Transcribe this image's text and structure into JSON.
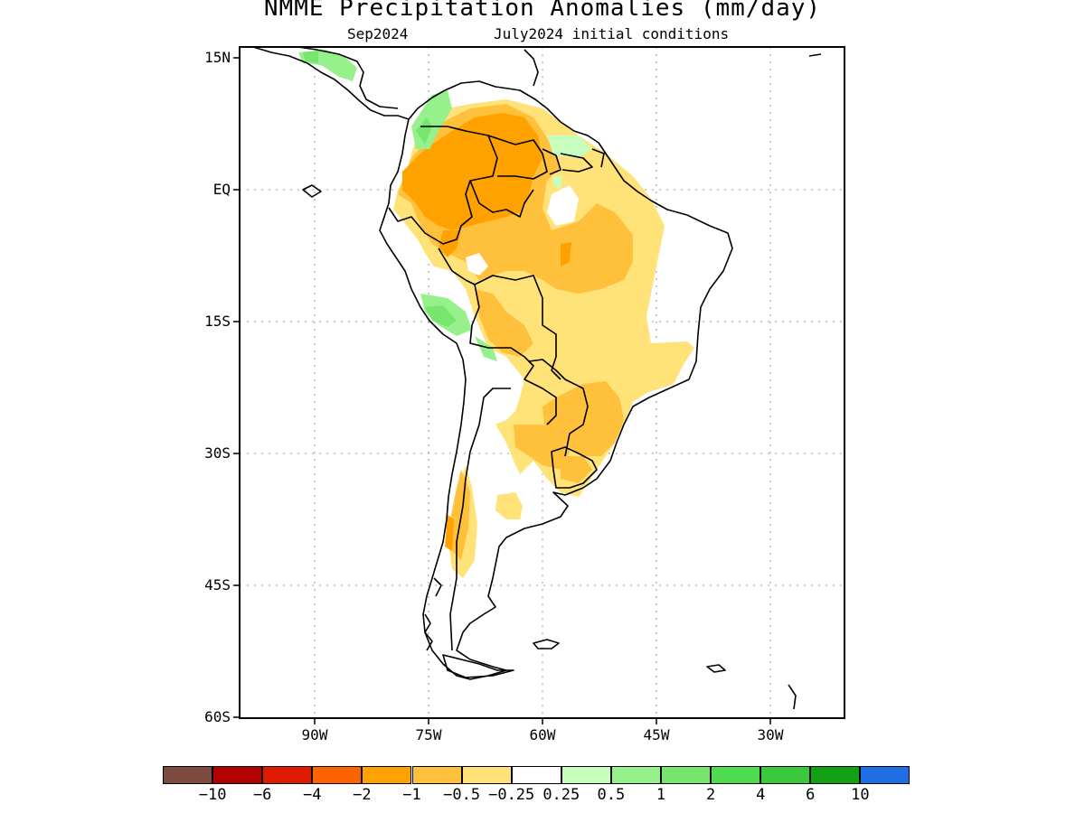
{
  "title": "NMME Precipitation Anomalies (mm/day)",
  "subtitle_left": "Sep2024",
  "subtitle_right": "July2024 initial conditions",
  "map": {
    "lon_range": [
      -100,
      -20
    ],
    "lat_range": [
      -60,
      15
    ],
    "y_ticks": [
      "15N",
      "EQ",
      "15S",
      "30S",
      "45S",
      "60S"
    ],
    "x_ticks": [
      "90W",
      "75W",
      "60W",
      "45W",
      "30W"
    ],
    "grid": "dotted"
  },
  "colorbar": {
    "colors": [
      "#7a4b3e",
      "#b30000",
      "#e01a00",
      "#ff6300",
      "#ffa200",
      "#ffc03c",
      "#ffe278",
      "#ffffff",
      "#c8ffbe",
      "#96f08c",
      "#78e66e",
      "#50dc50",
      "#3cc83c",
      "#14a014",
      "#1e6ee6"
    ],
    "labels": [
      "-10",
      "-6",
      "-4",
      "-2",
      "-1",
      "-0.5",
      "-0.25",
      "0.25",
      "0.5",
      "1",
      "2",
      "4",
      "6",
      "10"
    ]
  }
}
